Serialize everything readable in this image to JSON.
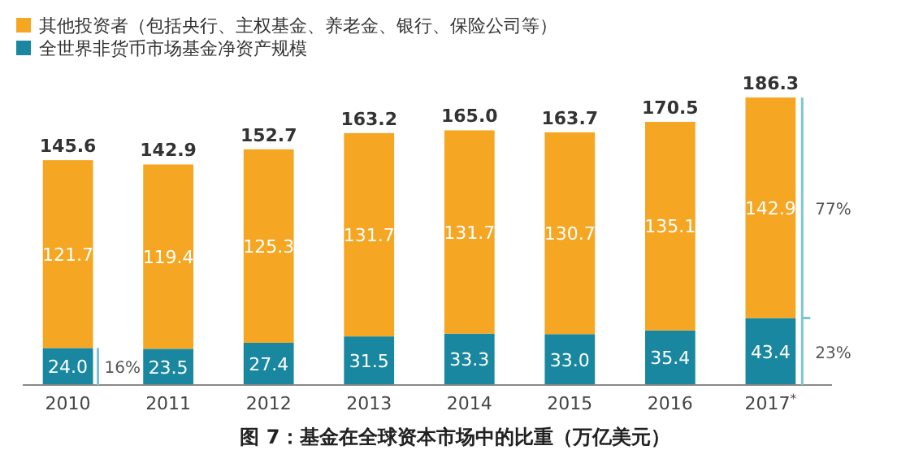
{
  "chart_data": {
    "type": "bar",
    "title": "图 7：基金在全球资本市场中的比重（万亿美元）",
    "categories": [
      "2010",
      "2011",
      "2012",
      "2013",
      "2014",
      "2015",
      "2016",
      "2017$^{*}$"
    ],
    "stacked": true,
    "legend": "top left",
    "series": [
      {
        "name": "全世界非货币市场基金净资产规模",
        "color": "#1a87a0",
        "values": [
          24.0,
          23.5,
          27.4,
          31.5,
          33.3,
          33.0,
          35.4,
          43.4
        ],
        "value_labels": [
          "24.0",
          "23.5",
          "27.4",
          "31.5",
          "33.3",
          "33.0",
          "35.4",
          "43.4"
        ]
      },
      {
        "name": "其他投资者（包括央行、主权基金、养老金、银行、保险公司等）",
        "color": "#f5a623",
        "values": [
          121.7,
          119.4,
          125.3,
          131.7,
          131.7,
          130.7,
          135.1,
          142.9
        ],
        "value_labels": [
          "121.7",
          "119.4",
          "125.3",
          "131.7",
          "131.7",
          "130.7",
          "135.1",
          "142.9"
        ]
      }
    ],
    "totals": [
      "145.6",
      "142.9",
      "152.7",
      "163.2",
      "165.0",
      "163.7",
      "170.5",
      "186.3"
    ],
    "annotations": [
      "16%",
      "77%",
      "23%"
    ]
  }
}
